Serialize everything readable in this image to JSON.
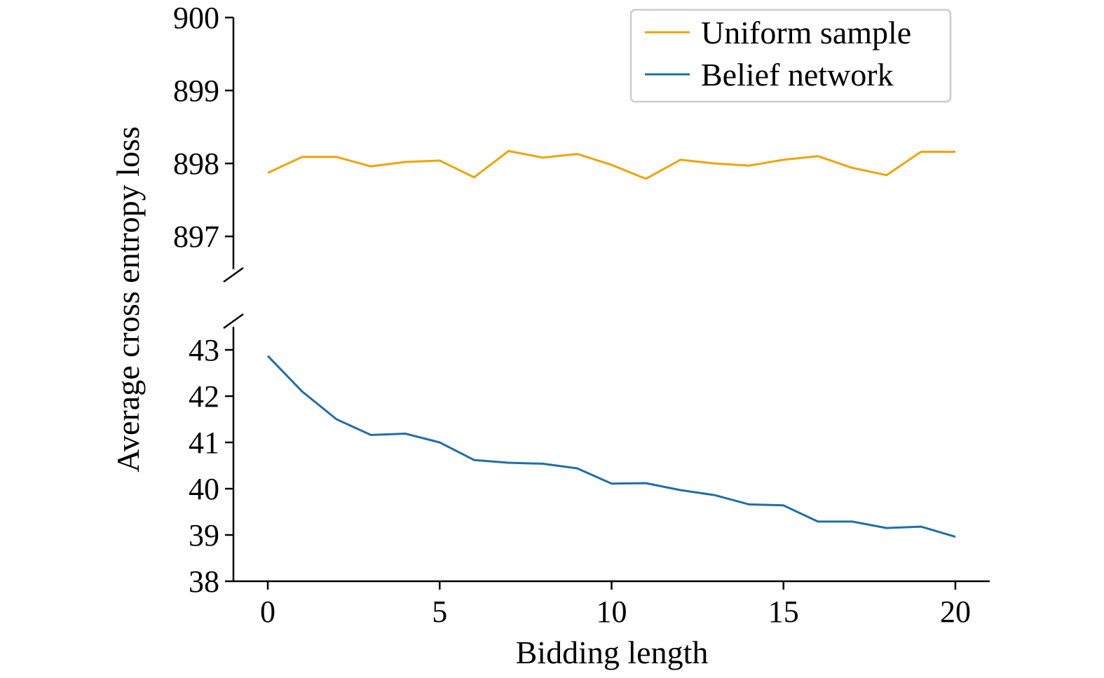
{
  "chart_data": {
    "type": "line",
    "xlabel": "Bidding length",
    "ylabel": "Average cross entropy loss",
    "x": [
      0,
      1,
      2,
      3,
      4,
      5,
      6,
      7,
      8,
      9,
      10,
      11,
      12,
      13,
      14,
      15,
      16,
      17,
      18,
      19,
      20
    ],
    "xlim": [
      -1,
      21
    ],
    "xticks": [
      "0",
      "5",
      "10",
      "15",
      "20"
    ],
    "xtick_values": [
      0,
      5,
      10,
      15,
      20
    ],
    "broken_y_axis": true,
    "upper_panel": {
      "ylim": [
        896.55,
        900
      ],
      "yticks": [
        "897",
        "898",
        "899",
        "900"
      ],
      "ytick_values": [
        897,
        898,
        899,
        900
      ]
    },
    "lower_panel": {
      "ylim": [
        38,
        43.5
      ],
      "yticks": [
        "38",
        "39",
        "40",
        "41",
        "42",
        "43"
      ],
      "ytick_values": [
        38,
        39,
        40,
        41,
        42,
        43
      ]
    },
    "series": [
      {
        "name": "Uniform sample",
        "color": "#F0A30A",
        "panel": "upper",
        "values": [
          897.87,
          898.09,
          898.09,
          897.96,
          898.02,
          898.04,
          897.81,
          898.17,
          898.08,
          898.13,
          897.98,
          897.79,
          898.05,
          898.0,
          897.97,
          898.05,
          898.1,
          897.94,
          897.84,
          898.16,
          898.16
        ]
      },
      {
        "name": "Belief network",
        "color": "#1F6FA8",
        "panel": "lower",
        "values": [
          42.87,
          42.1,
          41.5,
          41.16,
          41.19,
          41.0,
          40.62,
          40.56,
          40.54,
          40.44,
          40.11,
          40.12,
          39.97,
          39.86,
          39.66,
          39.64,
          39.29,
          39.29,
          39.15,
          39.18,
          38.96
        ]
      }
    ],
    "legend": {
      "placement": "top-right",
      "frame": true
    },
    "grid": false
  }
}
